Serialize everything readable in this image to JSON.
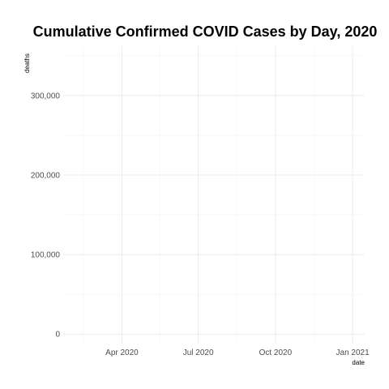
{
  "chart_data": {
    "type": "line",
    "title": "Cumulative Confirmed COVID Cases by Day, 2020",
    "xlabel": "date",
    "ylabel": "deaths",
    "x_axis_type": "date",
    "xlim": [
      "2020-01-22",
      "2021-01-01"
    ],
    "x_ticks": [
      {
        "value": "2020-04-01",
        "label": "Apr 2020"
      },
      {
        "value": "2020-07-01",
        "label": "Jul 2020"
      },
      {
        "value": "2020-10-01",
        "label": "Oct 2020"
      },
      {
        "value": "2021-01-01",
        "label": "Jan 2021"
      }
    ],
    "x_minor_ticks": [
      "2020-02-15",
      "2020-05-16",
      "2020-08-16",
      "2020-11-16"
    ],
    "ylim": [
      -12000,
      362000
    ],
    "y_ticks": [
      {
        "value": 0,
        "label": "0"
      },
      {
        "value": 100000,
        "label": "100,000"
      },
      {
        "value": 200000,
        "label": "200,000"
      },
      {
        "value": 300000,
        "label": "300,000"
      }
    ],
    "y_minor_ticks": [
      50000,
      150000,
      250000,
      350000
    ],
    "grid": true,
    "legend": "none",
    "series": [],
    "colors": {
      "grid_major": "#ebebeb",
      "grid_minor": "#f3f3f3",
      "background": "#ffffff"
    }
  }
}
